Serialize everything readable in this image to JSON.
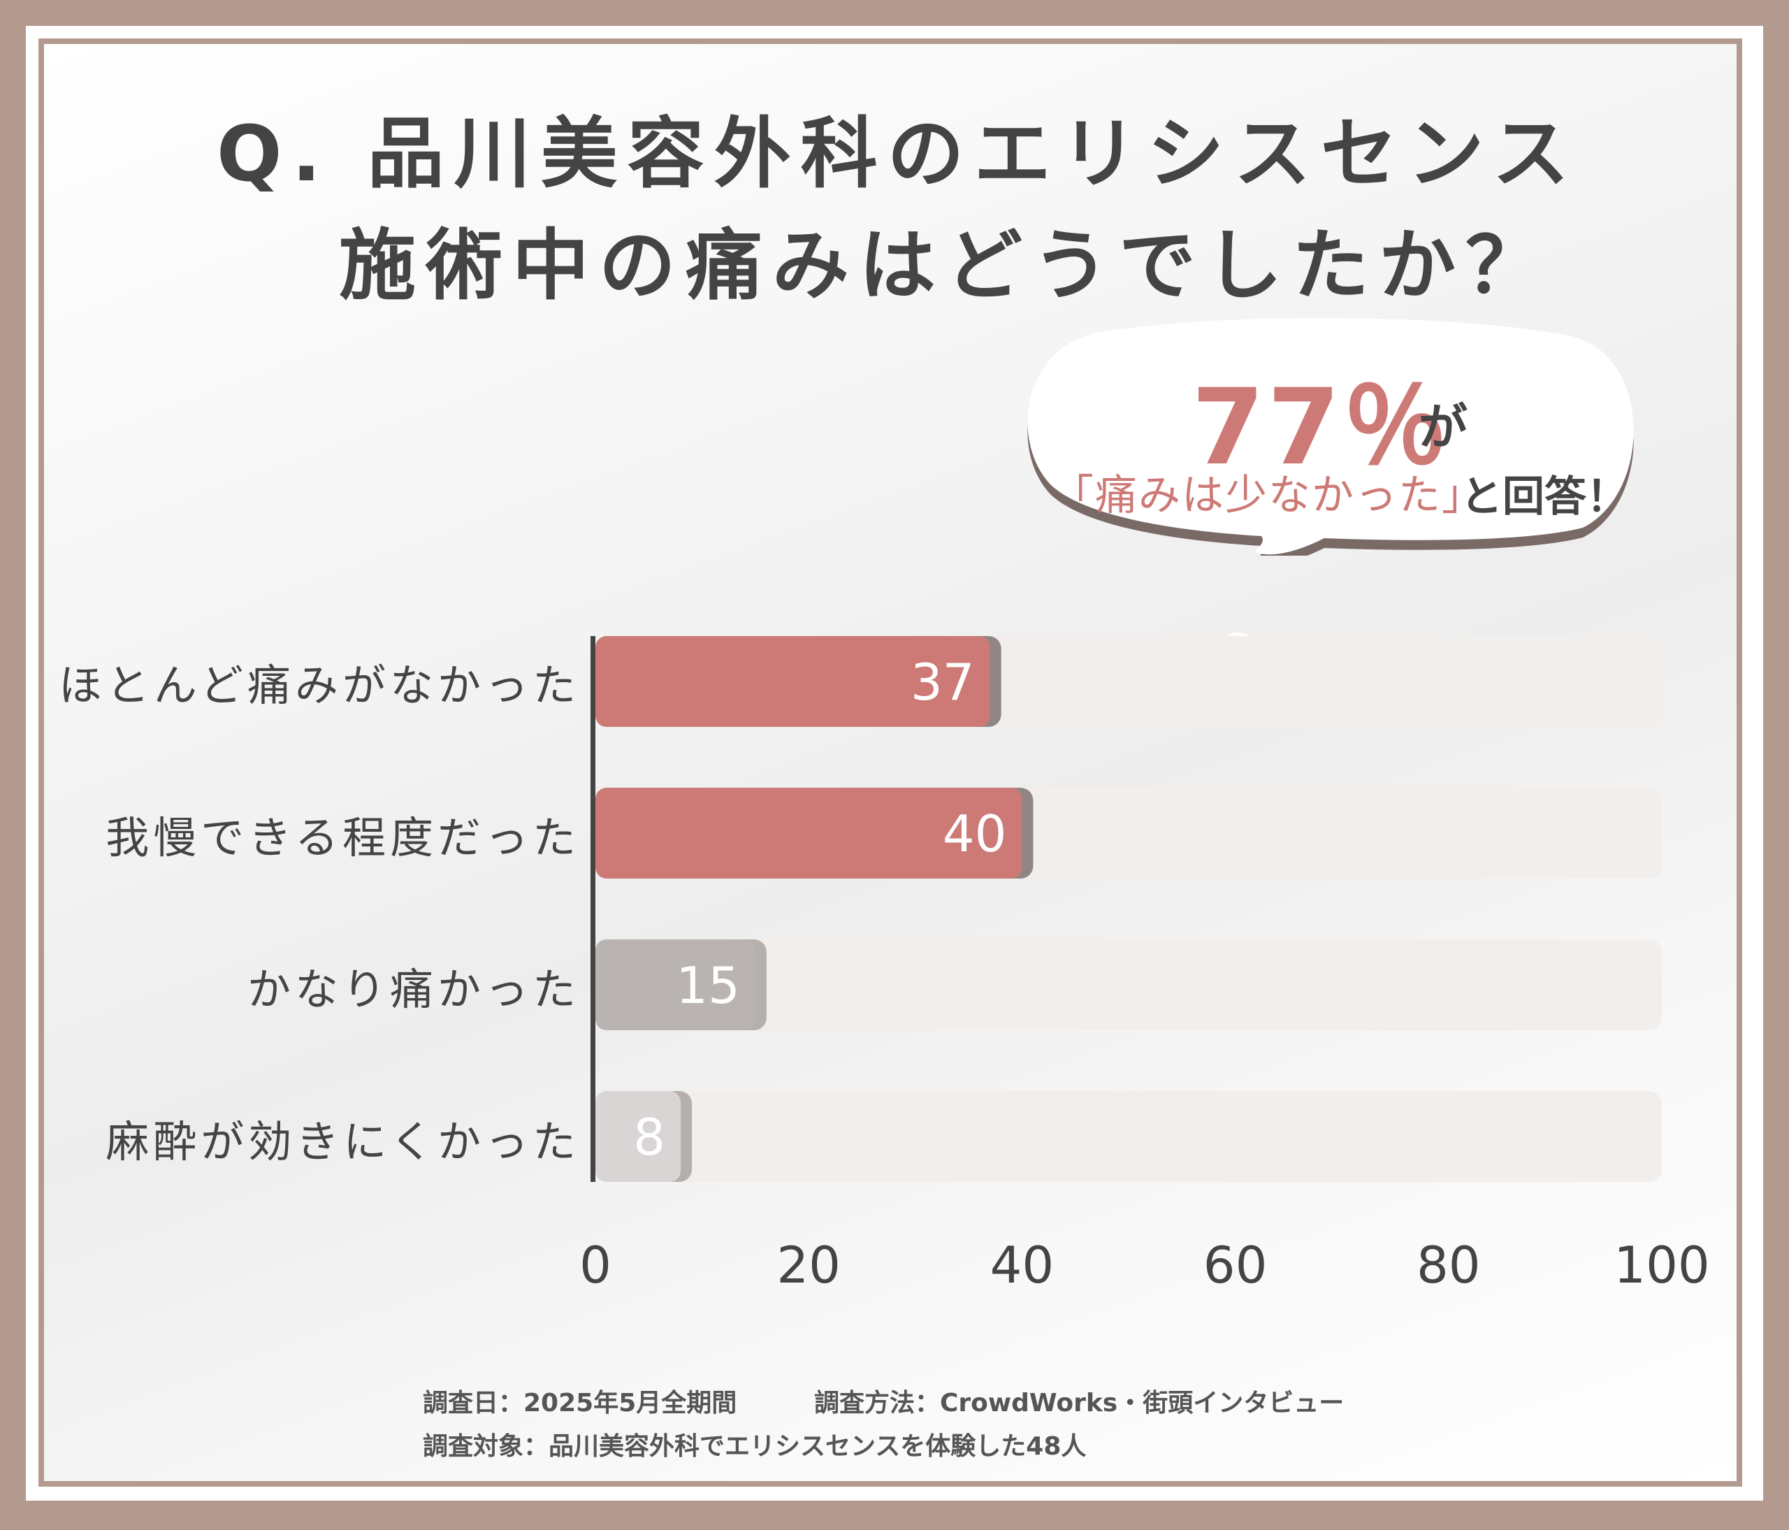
{
  "title": {
    "line1": "Q. 品川美容外科のエリシスセンス",
    "line2": "施術中の痛みはどうでしたか？"
  },
  "callout": {
    "percent": "77％",
    "suffix": "が",
    "quote": "「痛みは少なかった」",
    "tail": "と回答！"
  },
  "chart_data": {
    "type": "bar",
    "orientation": "horizontal",
    "categories": [
      "ほとんど痛みがなかった",
      "我慢できる程度だった",
      "かなり痛かった",
      "麻酔が効きにくかった"
    ],
    "values": [
      37,
      40,
      15,
      8
    ],
    "xlim": [
      0,
      100
    ],
    "xticks": [
      0,
      20,
      40,
      60,
      80,
      100
    ],
    "bar_colors": [
      "#cd7a76",
      "#cd7a76",
      "#b9b4b1",
      "#d8d5d4"
    ],
    "track_color": "#f1eeec",
    "grid": false,
    "legend": "none"
  },
  "footnotes": {
    "date": "調査日：2025年5月全期間",
    "method": "調査方法：CrowdWorks・街頭インタビュー",
    "target": "調査対象：品川美容外科でエリシスセンスを体験した48人"
  }
}
